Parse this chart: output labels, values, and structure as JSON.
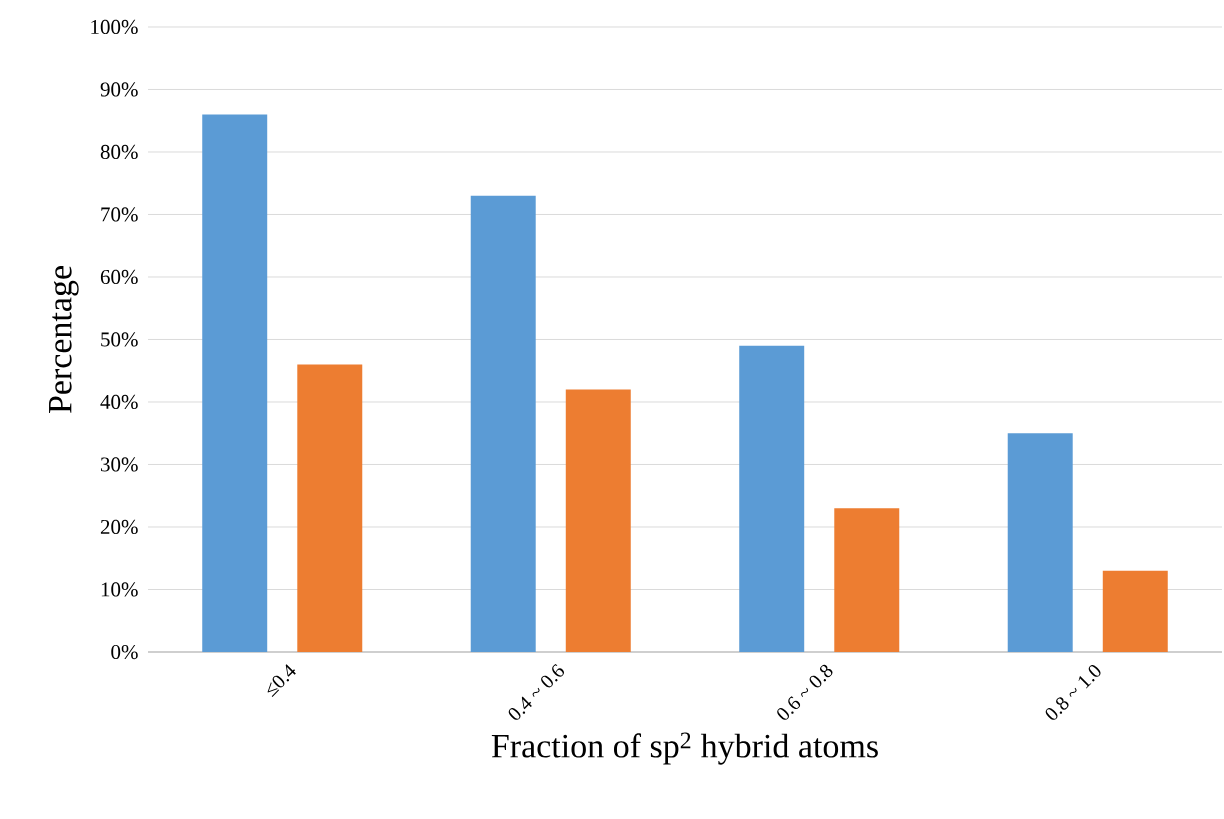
{
  "chart_data": {
    "type": "bar",
    "xlabel": "Fraction of sp$^{2}$  hybrid atoms",
    "ylabel": "Percentage",
    "categories": [
      "≤0.4",
      "0.4 ~ 0.6",
      "0.6 ~ 0.8",
      "0.8 ~ 1.0"
    ],
    "series": [
      {
        "color": "#5b9bd5",
        "values": [
          86,
          73,
          49,
          35
        ]
      },
      {
        "color": "#ed7d31",
        "values": [
          46,
          42,
          23,
          13
        ]
      }
    ],
    "ylim": [
      0,
      100
    ],
    "yticks": [
      {
        "value": 0,
        "label": "0%"
      },
      {
        "value": 10,
        "label": "10%"
      },
      {
        "value": 20,
        "label": "20%"
      },
      {
        "value": 30,
        "label": "30%"
      },
      {
        "value": 40,
        "label": "40%"
      },
      {
        "value": 50,
        "label": "50%"
      },
      {
        "value": 60,
        "label": "60%"
      },
      {
        "value": 70,
        "label": "70%"
      },
      {
        "value": 80,
        "label": "80%"
      },
      {
        "value": 90,
        "label": "90%"
      },
      {
        "value": 100,
        "label": "100%"
      }
    ],
    "grid": "y"
  }
}
